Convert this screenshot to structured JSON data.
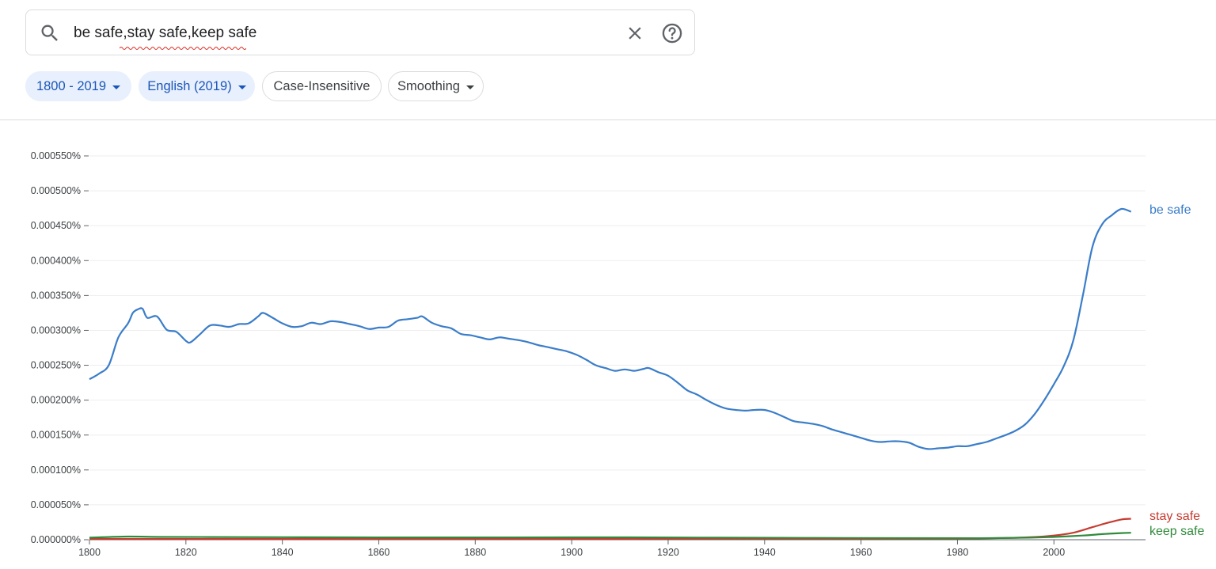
{
  "search": {
    "query": "be safe,stay safe,keep safe"
  },
  "filters": {
    "years": "1800 - 2019",
    "corpus": "English (2019)",
    "case": "Case-Insensitive",
    "smoothing": "Smoothing"
  },
  "icons": {
    "search": "search-icon",
    "clear": "close-icon",
    "help": "help-icon",
    "dropdown": "caret-down-icon"
  },
  "chart_data": {
    "type": "line",
    "title": "",
    "xlabel": "",
    "ylabel": "",
    "xlim": [
      1800,
      2019
    ],
    "ylim": [
      0,
      0.00055
    ],
    "grid": true,
    "legend": "end-of-line labels",
    "x_ticks": [
      1800,
      1820,
      1840,
      1860,
      1880,
      1900,
      1920,
      1940,
      1960,
      1980,
      2000
    ],
    "y_ticks": [
      {
        "value": 0.00055,
        "label": "0.000550%"
      },
      {
        "value": 0.0005,
        "label": "0.000500%"
      },
      {
        "value": 0.00045,
        "label": "0.000450%"
      },
      {
        "value": 0.0004,
        "label": "0.000400%"
      },
      {
        "value": 0.00035,
        "label": "0.000350%"
      },
      {
        "value": 0.0003,
        "label": "0.000300%"
      },
      {
        "value": 0.00025,
        "label": "0.000250%"
      },
      {
        "value": 0.0002,
        "label": "0.000200%"
      },
      {
        "value": 0.00015,
        "label": "0.000150%"
      },
      {
        "value": 0.0001,
        "label": "0.000100%"
      },
      {
        "value": 5e-05,
        "label": "0.000050%"
      },
      {
        "value": 0.0,
        "label": "0.000000%"
      }
    ],
    "series": [
      {
        "name": "be safe",
        "color": "#3a7dc9",
        "points": [
          [
            1800,
            0.00023
          ],
          [
            1802,
            0.000238
          ],
          [
            1804,
            0.00025
          ],
          [
            1806,
            0.00029
          ],
          [
            1808,
            0.00031
          ],
          [
            1809,
            0.000325
          ],
          [
            1810,
            0.00033
          ],
          [
            1811,
            0.000331
          ],
          [
            1812,
            0.000318
          ],
          [
            1814,
            0.00032
          ],
          [
            1816,
            0.000301
          ],
          [
            1818,
            0.000298
          ],
          [
            1820,
            0.000285
          ],
          [
            1821,
            0.000283
          ],
          [
            1823,
            0.000295
          ],
          [
            1825,
            0.000307
          ],
          [
            1827,
            0.000307
          ],
          [
            1829,
            0.000305
          ],
          [
            1831,
            0.000309
          ],
          [
            1833,
            0.00031
          ],
          [
            1835,
            0.00032
          ],
          [
            1836,
            0.000325
          ],
          [
            1838,
            0.000318
          ],
          [
            1840,
            0.00031
          ],
          [
            1842,
            0.000305
          ],
          [
            1844,
            0.000306
          ],
          [
            1846,
            0.000311
          ],
          [
            1848,
            0.000309
          ],
          [
            1850,
            0.000313
          ],
          [
            1852,
            0.000312
          ],
          [
            1854,
            0.000309
          ],
          [
            1856,
            0.000306
          ],
          [
            1858,
            0.000302
          ],
          [
            1860,
            0.000304
          ],
          [
            1862,
            0.000305
          ],
          [
            1864,
            0.000314
          ],
          [
            1866,
            0.000316
          ],
          [
            1868,
            0.000318
          ],
          [
            1869,
            0.00032
          ],
          [
            1871,
            0.000311
          ],
          [
            1873,
            0.000306
          ],
          [
            1875,
            0.000303
          ],
          [
            1877,
            0.000295
          ],
          [
            1879,
            0.000293
          ],
          [
            1881,
            0.00029
          ],
          [
            1883,
            0.000287
          ],
          [
            1885,
            0.00029
          ],
          [
            1887,
            0.000288
          ],
          [
            1889,
            0.000286
          ],
          [
            1891,
            0.000283
          ],
          [
            1893,
            0.000279
          ],
          [
            1895,
            0.000276
          ],
          [
            1897,
            0.000273
          ],
          [
            1899,
            0.00027
          ],
          [
            1901,
            0.000265
          ],
          [
            1903,
            0.000258
          ],
          [
            1905,
            0.00025
          ],
          [
            1907,
            0.000246
          ],
          [
            1909,
            0.000242
          ],
          [
            1911,
            0.000244
          ],
          [
            1913,
            0.000242
          ],
          [
            1915,
            0.000245
          ],
          [
            1916,
            0.000246
          ],
          [
            1918,
            0.00024
          ],
          [
            1920,
            0.000235
          ],
          [
            1922,
            0.000225
          ],
          [
            1924,
            0.000214
          ],
          [
            1926,
            0.000208
          ],
          [
            1928,
            0.0002
          ],
          [
            1930,
            0.000193
          ],
          [
            1932,
            0.000188
          ],
          [
            1934,
            0.000186
          ],
          [
            1936,
            0.000185
          ],
          [
            1938,
            0.000186
          ],
          [
            1940,
            0.000186
          ],
          [
            1942,
            0.000182
          ],
          [
            1944,
            0.000176
          ],
          [
            1946,
            0.00017
          ],
          [
            1948,
            0.000168
          ],
          [
            1950,
            0.000166
          ],
          [
            1952,
            0.000163
          ],
          [
            1954,
            0.000158
          ],
          [
            1956,
            0.000154
          ],
          [
            1958,
            0.00015
          ],
          [
            1960,
            0.000146
          ],
          [
            1962,
            0.000142
          ],
          [
            1964,
            0.00014
          ],
          [
            1966,
            0.000141
          ],
          [
            1968,
            0.000141
          ],
          [
            1970,
            0.000139
          ],
          [
            1972,
            0.000133
          ],
          [
            1974,
            0.00013
          ],
          [
            1976,
            0.000131
          ],
          [
            1978,
            0.000132
          ],
          [
            1980,
            0.000134
          ],
          [
            1982,
            0.000134
          ],
          [
            1984,
            0.000137
          ],
          [
            1986,
            0.00014
          ],
          [
            1988,
            0.000145
          ],
          [
            1990,
            0.00015
          ],
          [
            1992,
            0.000156
          ],
          [
            1994,
            0.000165
          ],
          [
            1996,
            0.00018
          ],
          [
            1998,
            0.0002
          ],
          [
            2000,
            0.000223
          ],
          [
            2002,
            0.000248
          ],
          [
            2004,
            0.000285
          ],
          [
            2006,
            0.00035
          ],
          [
            2008,
            0.00042
          ],
          [
            2010,
            0.000452
          ],
          [
            2012,
            0.000465
          ],
          [
            2014,
            0.000474
          ],
          [
            2016,
            0.00047
          ]
        ]
      },
      {
        "name": "stay safe",
        "color": "#c53b30",
        "points": [
          [
            1800,
            1e-06
          ],
          [
            1840,
            1e-06
          ],
          [
            1880,
            1e-06
          ],
          [
            1920,
            1.2e-06
          ],
          [
            1960,
            1.2e-06
          ],
          [
            1980,
            1.5e-06
          ],
          [
            1990,
            2.5e-06
          ],
          [
            1995,
            3.5e-06
          ],
          [
            2000,
            6e-06
          ],
          [
            2004,
            1e-05
          ],
          [
            2008,
            1.8e-05
          ],
          [
            2011,
            2.4e-05
          ],
          [
            2014,
            2.9e-05
          ],
          [
            2016,
            3e-05
          ]
        ]
      },
      {
        "name": "keep safe",
        "color": "#2f8a3b",
        "points": [
          [
            1800,
            3e-06
          ],
          [
            1808,
            4.5e-06
          ],
          [
            1815,
            4e-06
          ],
          [
            1825,
            3.8e-06
          ],
          [
            1840,
            3.6e-06
          ],
          [
            1860,
            3.3e-06
          ],
          [
            1880,
            3.3e-06
          ],
          [
            1900,
            3.4e-06
          ],
          [
            1912,
            3.4e-06
          ],
          [
            1930,
            3e-06
          ],
          [
            1950,
            2.6e-06
          ],
          [
            1970,
            2.3e-06
          ],
          [
            1985,
            2.2e-06
          ],
          [
            1995,
            3e-06
          ],
          [
            2000,
            4e-06
          ],
          [
            2006,
            6e-06
          ],
          [
            2010,
            8e-06
          ],
          [
            2014,
            9.5e-06
          ],
          [
            2016,
            1e-05
          ]
        ]
      }
    ]
  }
}
